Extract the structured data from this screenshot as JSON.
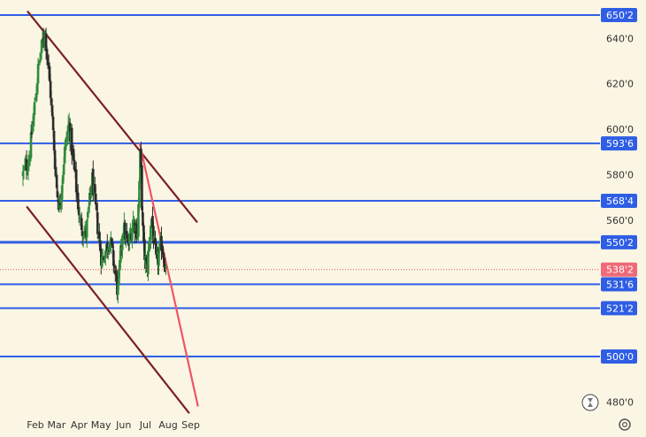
{
  "chart_data": {
    "type": "candlestick",
    "x_axis": {
      "tick_labels": [
        "Feb",
        "Mar",
        "Apr",
        "May",
        "Jun",
        "Jul",
        "Aug",
        "Sep"
      ],
      "tick_dates": [
        "2024-02-01",
        "2024-03-01",
        "2024-04-01",
        "2024-05-01",
        "2024-06-01",
        "2024-07-01",
        "2024-08-01",
        "2024-09-01"
      ]
    },
    "y_axis": {
      "range": [
        474,
        652
      ],
      "tick_values": [
        640,
        620,
        600,
        580,
        560,
        480
      ],
      "tick_labels": [
        "640'0",
        "620'0",
        "600'0",
        "580'0",
        "560'0",
        "480'0"
      ],
      "side": "right"
    },
    "horizontal_levels": [
      {
        "value": 650.25,
        "label": "650'2"
      },
      {
        "value": 593.75,
        "label": "593'6"
      },
      {
        "value": 568.5,
        "label": "568'4"
      },
      {
        "value": 550.25,
        "label": "550'2"
      },
      {
        "value": 531.75,
        "label": "531'6"
      },
      {
        "value": 521.25,
        "label": "521'2"
      },
      {
        "value": 500.0,
        "label": "500'0"
      }
    ],
    "current_price": {
      "value": 538.25,
      "label": "538'2"
    },
    "trend_lines": [
      {
        "color": "#7a1f24",
        "start": {
          "date": "2024-01-21",
          "value": 652
        },
        "end": {
          "date": "2024-09-10",
          "value": 559
        }
      },
      {
        "color": "#7a1f24",
        "start": {
          "date": "2024-01-20",
          "value": 566
        },
        "end": {
          "date": "2024-08-30",
          "value": 475
        }
      },
      {
        "color": "#ee5565",
        "start": {
          "date": "2024-06-23",
          "value": 593.75
        },
        "end": {
          "date": "2024-09-11",
          "value": 478
        }
      }
    ],
    "candles": {
      "start_date": "2024-01-15",
      "count": 162,
      "rising_color": "#2e8b3a",
      "falling_color": "#2b2b2b",
      "anchors": [
        {
          "date": "2024-01-15",
          "value": 580
        },
        {
          "date": "2024-01-24",
          "value": 588
        },
        {
          "date": "2024-02-05",
          "value": 627
        },
        {
          "date": "2024-02-14",
          "value": 644
        },
        {
          "date": "2024-02-22",
          "value": 615
        },
        {
          "date": "2024-03-01",
          "value": 575
        },
        {
          "date": "2024-03-05",
          "value": 565
        },
        {
          "date": "2024-03-12",
          "value": 590
        },
        {
          "date": "2024-03-18",
          "value": 603
        },
        {
          "date": "2024-03-26",
          "value": 580
        },
        {
          "date": "2024-04-02",
          "value": 560
        },
        {
          "date": "2024-04-10",
          "value": 553
        },
        {
          "date": "2024-04-19",
          "value": 578
        },
        {
          "date": "2024-04-26",
          "value": 558
        },
        {
          "date": "2024-05-02",
          "value": 542
        },
        {
          "date": "2024-05-13",
          "value": 552
        },
        {
          "date": "2024-05-20",
          "value": 538
        },
        {
          "date": "2024-05-24",
          "value": 528
        },
        {
          "date": "2024-05-31",
          "value": 558
        },
        {
          "date": "2024-06-07",
          "value": 548
        },
        {
          "date": "2024-06-14",
          "value": 560
        },
        {
          "date": "2024-06-20",
          "value": 555
        },
        {
          "date": "2024-06-24",
          "value": 590
        },
        {
          "date": "2024-06-28",
          "value": 548
        },
        {
          "date": "2024-07-03",
          "value": 538
        },
        {
          "date": "2024-07-09",
          "value": 562
        },
        {
          "date": "2024-07-16",
          "value": 540
        },
        {
          "date": "2024-07-23",
          "value": 550
        },
        {
          "date": "2024-07-29",
          "value": 538
        }
      ]
    }
  },
  "icons": [
    "hourglass-icon",
    "settings-icon"
  ]
}
